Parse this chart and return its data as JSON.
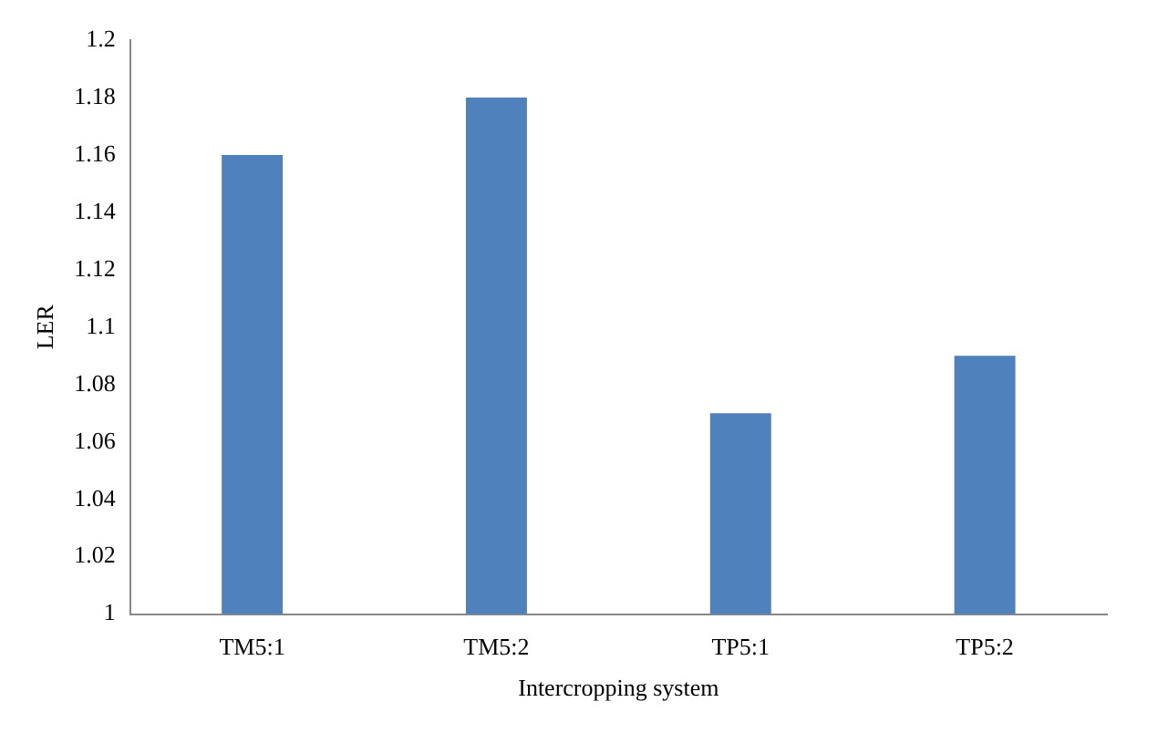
{
  "chart_data": {
    "type": "bar",
    "xlabel": "Intercropping system",
    "ylabel": "LER",
    "categories": [
      "TM5:1",
      "TM5:2",
      "TP5:1",
      "TP5:2"
    ],
    "values": [
      1.16,
      1.18,
      1.07,
      1.09
    ],
    "color": "#4f81bd",
    "ylim": [
      1,
      1.2
    ],
    "yticks": [
      1,
      1.02,
      1.04,
      1.06,
      1.08,
      1.1,
      1.12,
      1.14,
      1.16,
      1.18,
      1.2
    ],
    "grid": false,
    "legend": false
  }
}
